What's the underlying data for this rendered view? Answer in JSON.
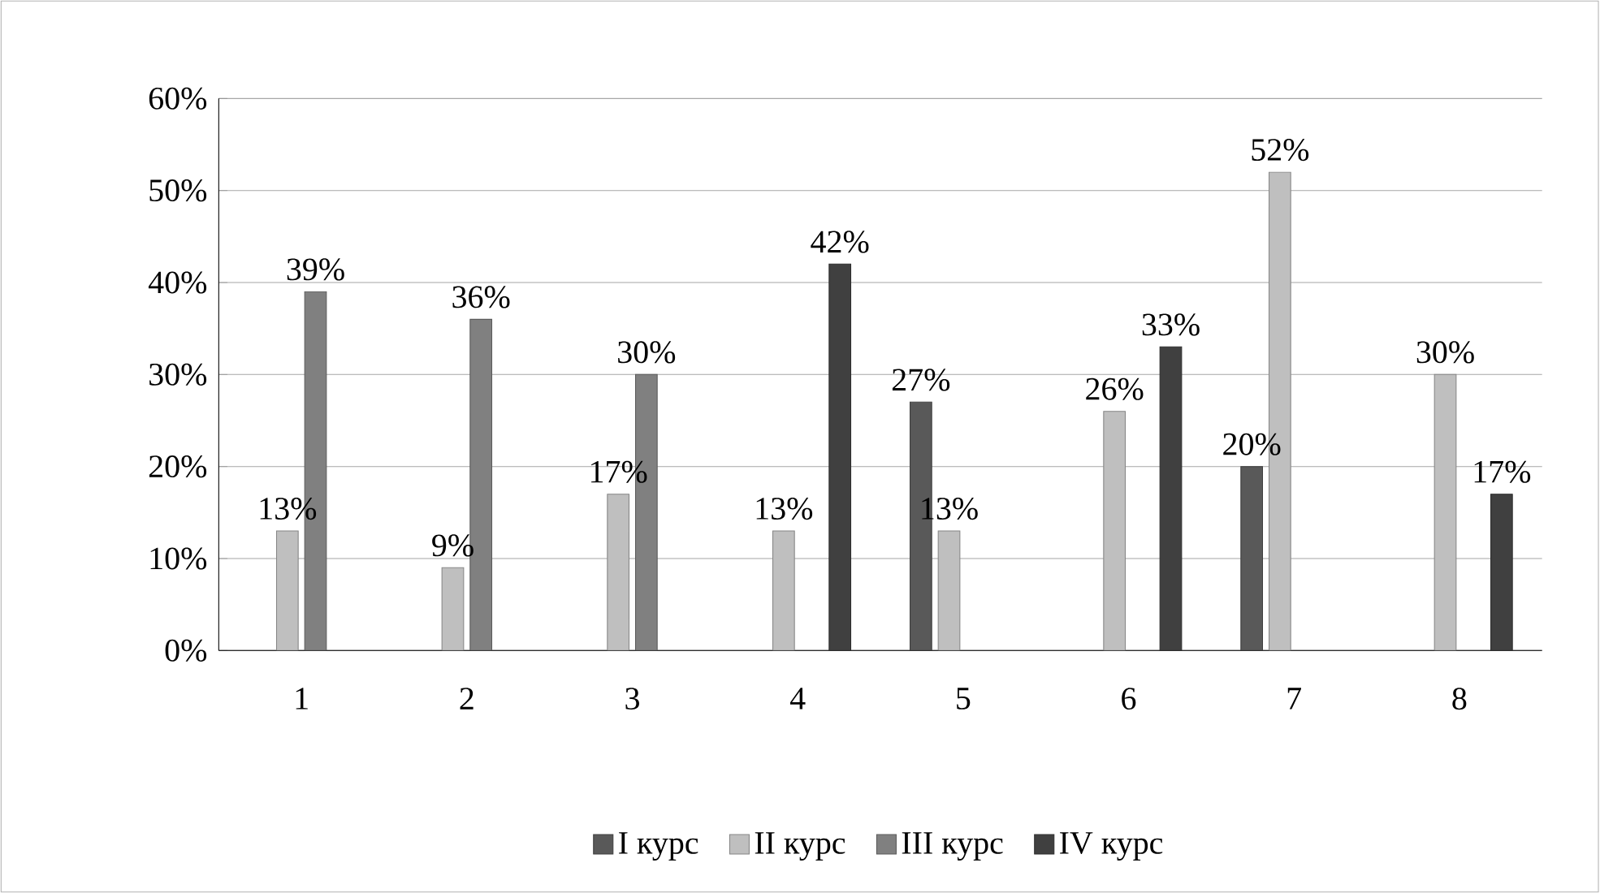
{
  "chart_data": {
    "type": "bar",
    "categories": [
      "1",
      "2",
      "3",
      "4",
      "5",
      "6",
      "7",
      "8"
    ],
    "series": [
      {
        "name": "I курс",
        "color": "#595959",
        "values": [
          null,
          null,
          null,
          null,
          27,
          null,
          20,
          null
        ],
        "value_labels": [
          null,
          null,
          null,
          null,
          "27%",
          null,
          "20%",
          null
        ]
      },
      {
        "name": "II курс",
        "color": "#bfbfbf",
        "values": [
          13,
          9,
          17,
          13,
          13,
          26,
          52,
          30
        ],
        "value_labels": [
          "13%",
          "9%",
          "17%",
          "13%",
          "13%",
          "26%",
          "52%",
          "30%"
        ]
      },
      {
        "name": "III курс",
        "color": "#808080",
        "values": [
          39,
          36,
          30,
          null,
          null,
          null,
          null,
          null
        ],
        "value_labels": [
          "39%",
          "36%",
          "30%",
          null,
          null,
          null,
          null,
          null
        ]
      },
      {
        "name": "IV курс",
        "color": "#404040",
        "values": [
          null,
          null,
          null,
          42,
          null,
          33,
          null,
          17
        ],
        "value_labels": [
          null,
          null,
          null,
          "42%",
          null,
          "33%",
          null,
          "17%"
        ]
      }
    ],
    "ylim": [
      0,
      60
    ],
    "yticks": [
      {
        "value": 0,
        "label": "0%"
      },
      {
        "value": 10,
        "label": "10%"
      },
      {
        "value": 20,
        "label": "20%"
      },
      {
        "value": 30,
        "label": "30%"
      },
      {
        "value": 40,
        "label": "40%"
      },
      {
        "value": 50,
        "label": "50%"
      },
      {
        "value": 60,
        "label": "60%"
      }
    ],
    "grid": "y",
    "legend": "bottom"
  }
}
